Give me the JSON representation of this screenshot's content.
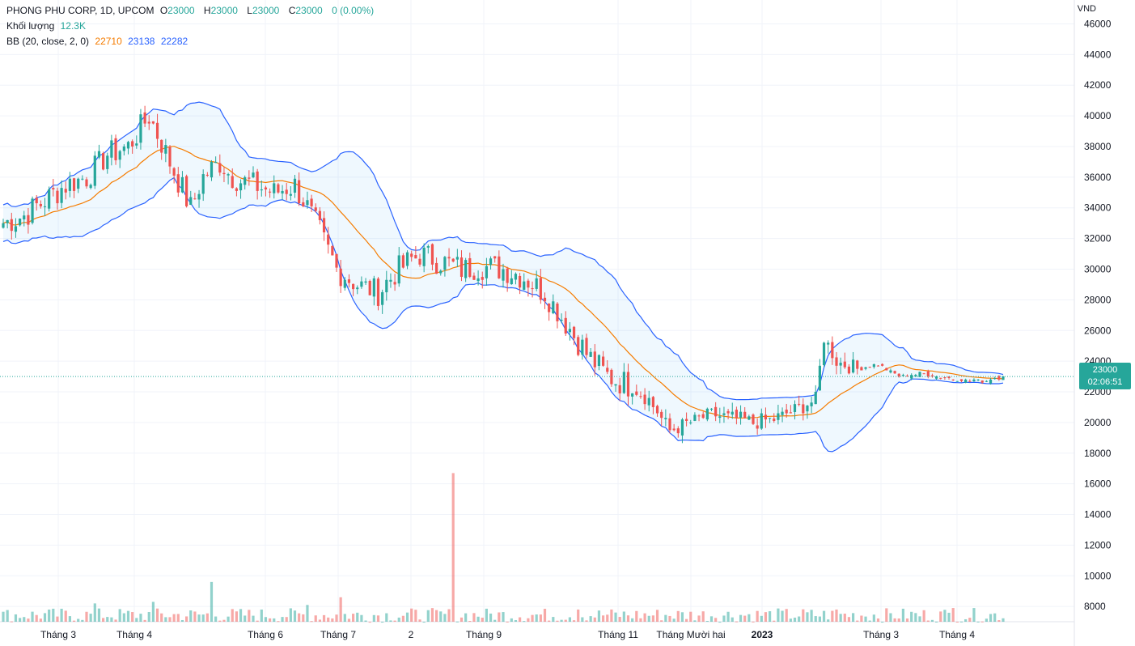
{
  "legend": {
    "symbol": "PHONG PHU CORP, 1D, UPCOM",
    "o_label": "O",
    "o_value": "23000",
    "h_label": "H",
    "h_value": "23000",
    "l_label": "L",
    "l_value": "23000",
    "c_label": "C",
    "c_value": "23000",
    "change": "0 (0.00%)",
    "volume_label": "Khối lượng",
    "volume_value": "12.3K",
    "bb_label": "BB (20, close, 2, 0)",
    "bb_basis": "22710",
    "bb_upper": "23138",
    "bb_lower": "22282"
  },
  "currency": "VND",
  "last_price": {
    "price": "23000",
    "countdown": "02:06:51"
  },
  "colors": {
    "up": "#26a69a",
    "down": "#ef5350",
    "band": "#2962ff",
    "basis": "#f57c00",
    "band_fill": "#2196f3"
  },
  "chart_data": {
    "type": "candlestick",
    "yaxis": {
      "ticks": [
        "8000",
        "10000",
        "12000",
        "14000",
        "16000",
        "18000",
        "20000",
        "22000",
        "24000",
        "26000",
        "28000",
        "30000",
        "32000",
        "34000",
        "36000",
        "38000",
        "40000",
        "42000",
        "44000",
        "46000"
      ],
      "range": [
        6900,
        46500
      ]
    },
    "xaxis": {
      "ticks": [
        "Tháng 3",
        "Tháng 4",
        "Tháng 6",
        "Tháng 7",
        "2",
        "Tháng 9",
        "Tháng 11",
        "Tháng Mười hai",
        "2023",
        "Tháng 3",
        "Tháng 4"
      ],
      "bold": [
        "2023"
      ]
    },
    "price_keypoints": [
      [
        0,
        33000
      ],
      [
        5,
        33500
      ],
      [
        10,
        34500
      ],
      [
        15,
        35500
      ],
      [
        20,
        36000
      ],
      [
        25,
        37500
      ],
      [
        30,
        38000
      ],
      [
        35,
        40000
      ],
      [
        40,
        37000
      ],
      [
        45,
        34000
      ],
      [
        48,
        36000
      ],
      [
        52,
        37000
      ],
      [
        55,
        36000
      ],
      [
        60,
        35500
      ],
      [
        65,
        35000
      ],
      [
        70,
        35500
      ],
      [
        75,
        33000
      ],
      [
        80,
        30000
      ],
      [
        85,
        29000
      ],
      [
        90,
        28500
      ],
      [
        95,
        30000
      ],
      [
        100,
        31000
      ],
      [
        105,
        30500
      ],
      [
        110,
        30000
      ],
      [
        115,
        30200
      ],
      [
        120,
        30000
      ],
      [
        125,
        29500
      ],
      [
        130,
        28500
      ],
      [
        135,
        26500
      ],
      [
        140,
        24500
      ],
      [
        145,
        23000
      ],
      [
        150,
        22500
      ],
      [
        155,
        21500
      ],
      [
        160,
        19500
      ],
      [
        165,
        20000
      ],
      [
        170,
        20500
      ],
      [
        175,
        20300
      ],
      [
        180,
        20000
      ],
      [
        185,
        20200
      ],
      [
        190,
        20800
      ],
      [
        195,
        21500
      ],
      [
        197,
        25500
      ],
      [
        200,
        24000
      ],
      [
        205,
        23500
      ],
      [
        210,
        23800
      ],
      [
        215,
        23000
      ],
      [
        220,
        23200
      ],
      [
        225,
        23000
      ],
      [
        230,
        22800
      ],
      [
        235,
        22700
      ],
      [
        240,
        23000
      ]
    ],
    "bollinger": {
      "length": 20,
      "mult": 2,
      "basis": 22710,
      "upper": 23138,
      "lower": 22282
    },
    "volume": {
      "typical": 500,
      "spikes": [
        [
          22,
          8200
        ],
        [
          36,
          8300
        ],
        [
          50,
          9600
        ],
        [
          73,
          8100
        ],
        [
          81,
          8600
        ],
        [
          108,
          16700
        ],
        [
          138,
          7800
        ],
        [
          200,
          7800
        ],
        [
          228,
          7900
        ]
      ]
    }
  }
}
